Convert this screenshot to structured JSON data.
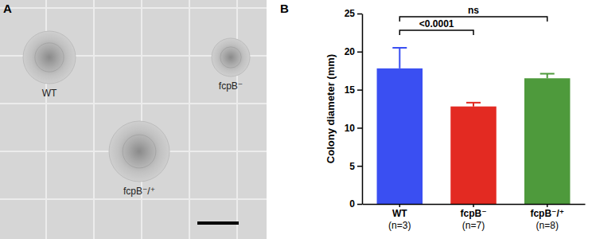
{
  "image_panel": {
    "label": "A",
    "colony_labels": [
      "WT",
      "fcpB⁻",
      "fcpB⁻/⁺"
    ]
  },
  "chart_panel_label": "B",
  "chart_data": {
    "type": "bar",
    "categories": [
      "WT\n(n=3)",
      "fcpB⁻\n(n=7)",
      "fcpB⁻/⁺\n(n=8)"
    ],
    "values": [
      17.8,
      12.8,
      16.5
    ],
    "errors": [
      2.7,
      0.5,
      0.6
    ],
    "colors": [
      "#3a4ff2",
      "#e32a22",
      "#4e9a3c"
    ],
    "y_label": "Colony diameter (mm)",
    "ylim": [
      0,
      25
    ],
    "yticks": [
      0,
      5,
      10,
      15,
      20,
      25
    ],
    "annotations": [
      {
        "from": 0,
        "to": 1,
        "text": "<0.0001"
      },
      {
        "from": 0,
        "to": 2,
        "text": "ns"
      }
    ]
  }
}
